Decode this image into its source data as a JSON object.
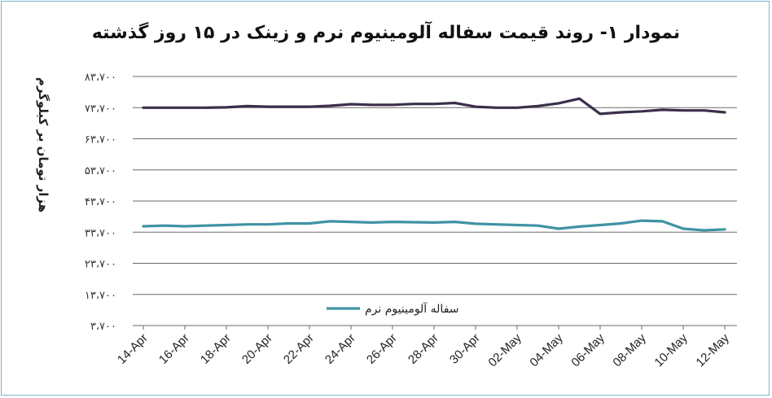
{
  "chart_data": {
    "type": "line",
    "title": "نمودار ۱- روند قیمت سفاله آلومینیوم نرم و زینک در ۱۵ روز گذشته",
    "ylabel": "هزار تومان بر کیلوگرم",
    "xlabel": "",
    "ylim": [
      3700,
      83700
    ],
    "yticks": [
      83700,
      73700,
      63700,
      53700,
      43700,
      33700,
      23700,
      13700,
      3700
    ],
    "ytick_labels": [
      "۸۳،۷۰۰",
      "۷۳،۷۰۰",
      "۶۳،۷۰۰",
      "۵۳،۷۰۰",
      "۴۳،۷۰۰",
      "۳۳،۷۰۰",
      "۲۳،۷۰۰",
      "۱۳،۷۰۰",
      "۳،۷۰۰"
    ],
    "x": [
      "14-Apr",
      "15-Apr",
      "16-Apr",
      "17-Apr",
      "18-Apr",
      "19-Apr",
      "20-Apr",
      "21-Apr",
      "22-Apr",
      "23-Apr",
      "24-Apr",
      "25-Apr",
      "26-Apr",
      "27-Apr",
      "28-Apr",
      "29-Apr",
      "30-Apr",
      "01-May",
      "02-May",
      "03-May",
      "04-May",
      "05-May",
      "06-May",
      "07-May",
      "08-May",
      "09-May",
      "10-May",
      "11-May",
      "12-May"
    ],
    "x_tick_labels": [
      "14-Apr",
      "16-Apr",
      "18-Apr",
      "20-Apr",
      "22-Apr",
      "24-Apr",
      "26-Apr",
      "28-Apr",
      "30-Apr",
      "02-May",
      "04-May",
      "06-May",
      "08-May",
      "10-May",
      "12-May"
    ],
    "legend_position": "bottom-center",
    "grid": true,
    "series": [
      {
        "name": "",
        "color": "#3b2f4a",
        "values": [
          73700,
          73700,
          73700,
          73700,
          73800,
          74200,
          74000,
          74000,
          74000,
          74300,
          74800,
          74600,
          74600,
          74900,
          74900,
          75200,
          74000,
          73700,
          73700,
          74200,
          75100,
          76600,
          71700,
          72200,
          72500,
          73000,
          72800,
          72800,
          72200
        ]
      },
      {
        "name": "سفاله آلومینیوم نرم",
        "color": "#3f93a3",
        "values": [
          35600,
          35800,
          35600,
          35800,
          36000,
          36200,
          36200,
          36500,
          36500,
          37200,
          37000,
          36800,
          37000,
          36900,
          36800,
          37000,
          36400,
          36200,
          36000,
          35800,
          34800,
          35500,
          36000,
          36500,
          37400,
          37200,
          34800,
          34300,
          34600
        ]
      }
    ]
  }
}
